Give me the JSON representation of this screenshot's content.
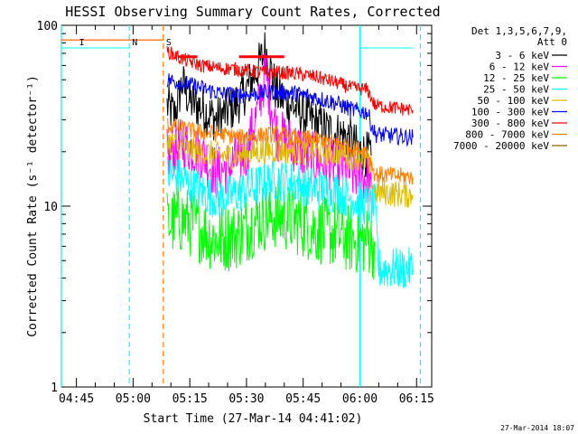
{
  "chart_data": {
    "type": "line",
    "title": "HESSI Observing Summary Count Rates, Corrected",
    "xlabel": "Start Time (27-Mar-14 04:41:02)",
    "ylabel": "Corrected Count Rate (s⁻¹ detector⁻¹)",
    "yscale": "log",
    "ylim": [
      1,
      100
    ],
    "xlim": [
      "04:41:02",
      "06:19:00"
    ],
    "x_ticks": [
      "04:45",
      "05:00",
      "05:15",
      "05:30",
      "05:45",
      "06:00",
      "06:15"
    ],
    "y_ticks": [
      "1",
      "10",
      "100"
    ],
    "grid": false,
    "legend_position": "right",
    "legend_header": [
      "Det 1,3,5,6,7,9,",
      "Att 0"
    ],
    "timestamp": "27-Mar-2014 18:07",
    "series": [
      {
        "name": "3 - 6 keV",
        "color": "#000000",
        "points": [
          [
            "05:09",
            36
          ],
          [
            "05:11",
            32
          ],
          [
            "05:13",
            48
          ],
          [
            "05:15",
            38
          ],
          [
            "05:18",
            35
          ],
          [
            "05:22",
            30
          ],
          [
            "05:27",
            36
          ],
          [
            "05:30",
            44
          ],
          [
            "05:33",
            58
          ],
          [
            "05:35",
            74
          ],
          [
            "05:38",
            42
          ],
          [
            "05:42",
            36
          ],
          [
            "05:47",
            30
          ],
          [
            "05:52",
            26
          ],
          [
            "05:57",
            24
          ],
          [
            "06:00",
            20
          ],
          [
            "06:03",
            19
          ]
        ]
      },
      {
        "name": "6 - 12 keV",
        "color": "#ff00ff",
        "points": [
          [
            "05:09",
            19
          ],
          [
            "05:13",
            22
          ],
          [
            "05:18",
            20
          ],
          [
            "05:22",
            15
          ],
          [
            "05:26",
            17
          ],
          [
            "05:30",
            20
          ],
          [
            "05:33",
            34
          ],
          [
            "05:35",
            55
          ],
          [
            "05:38",
            25
          ],
          [
            "05:42",
            22
          ],
          [
            "05:48",
            18
          ],
          [
            "05:54",
            17
          ],
          [
            "05:58",
            15
          ],
          [
            "06:00",
            15
          ],
          [
            "06:03",
            14
          ]
        ]
      },
      {
        "name": "12 - 25 keV",
        "color": "#00ff00",
        "points": [
          [
            "05:09",
            8
          ],
          [
            "05:13",
            8.5
          ],
          [
            "05:18",
            7.5
          ],
          [
            "05:22",
            6.5
          ],
          [
            "05:28",
            7
          ],
          [
            "05:33",
            8.5
          ],
          [
            "05:38",
            9
          ],
          [
            "05:42",
            8.5
          ],
          [
            "05:48",
            7.5
          ],
          [
            "05:54",
            7
          ],
          [
            "05:58",
            6.5
          ],
          [
            "06:02",
            6.5
          ],
          [
            "06:04",
            6
          ]
        ]
      },
      {
        "name": "25 - 50 keV",
        "color": "#00ffff",
        "points": [
          [
            "04:41",
            75
          ],
          [
            "04:58",
            75
          ],
          [
            "04:59",
            75
          ]
        ],
        "points_2": [
          [
            "05:09",
            15
          ],
          [
            "05:13",
            14
          ],
          [
            "05:18",
            12
          ],
          [
            "05:23",
            11
          ],
          [
            "05:28",
            12
          ],
          [
            "05:33",
            13
          ],
          [
            "05:38",
            14
          ],
          [
            "05:43",
            13.5
          ],
          [
            "05:48",
            12.5
          ],
          [
            "05:54",
            12
          ],
          [
            "05:58",
            11
          ],
          [
            "06:02",
            10
          ],
          [
            "06:04",
            10
          ],
          [
            "06:05",
            4.5
          ],
          [
            "06:14",
            4.5
          ]
        ],
        "points_3": [
          [
            "06:00",
            75
          ],
          [
            "06:14",
            75
          ]
        ]
      },
      {
        "name": "50 - 100 keV",
        "color": "#ddbb00",
        "points": [
          [
            "05:09",
            23
          ],
          [
            "05:13",
            21
          ],
          [
            "05:18",
            20
          ],
          [
            "05:23",
            19
          ],
          [
            "05:28",
            19
          ],
          [
            "05:33",
            20
          ],
          [
            "05:38",
            20.5
          ],
          [
            "05:43",
            20
          ],
          [
            "05:48",
            20
          ],
          [
            "05:54",
            19.5
          ],
          [
            "05:58",
            19
          ],
          [
            "06:02",
            18
          ],
          [
            "06:04",
            12
          ],
          [
            "06:14",
            11.5
          ]
        ]
      },
      {
        "name": "100 - 300 keV",
        "color": "#0000ff",
        "points": [
          [
            "05:09",
            50
          ],
          [
            "05:13",
            48
          ],
          [
            "05:18",
            45
          ],
          [
            "05:23",
            42
          ],
          [
            "05:28",
            41
          ],
          [
            "05:33",
            42
          ],
          [
            "05:38",
            43
          ],
          [
            "05:43",
            42
          ],
          [
            "05:48",
            40
          ],
          [
            "05:54",
            37
          ],
          [
            "05:58",
            34
          ],
          [
            "06:02",
            33
          ],
          [
            "06:04",
            25
          ],
          [
            "06:14",
            24
          ]
        ]
      },
      {
        "name": "300 - 800 keV",
        "color": "#ff0000",
        "points": [
          [
            "04:41",
            83
          ],
          [
            "05:08",
            83
          ]
        ],
        "points_2": [
          [
            "05:09",
            72
          ],
          [
            "05:13",
            65
          ],
          [
            "05:18",
            60
          ],
          [
            "05:23",
            58
          ],
          [
            "05:28",
            57
          ],
          [
            "05:33",
            55
          ],
          [
            "05:38",
            55
          ],
          [
            "05:43",
            54
          ],
          [
            "05:48",
            52
          ],
          [
            "05:54",
            48
          ],
          [
            "05:58",
            45
          ],
          [
            "06:02",
            44
          ],
          [
            "06:04",
            36
          ],
          [
            "06:14",
            34
          ]
        ]
      },
      {
        "name": "800 - 7000 keV",
        "color": "#ff8000",
        "points": [
          [
            "04:41",
            83
          ],
          [
            "05:08",
            83
          ]
        ],
        "points_2": [
          [
            "05:09",
            28
          ],
          [
            "05:13",
            27
          ],
          [
            "05:18",
            25.5
          ],
          [
            "05:23",
            25
          ],
          [
            "05:28",
            24
          ],
          [
            "05:33",
            24.5
          ],
          [
            "05:38",
            25
          ],
          [
            "05:43",
            24
          ],
          [
            "05:48",
            23.5
          ],
          [
            "05:54",
            22.5
          ],
          [
            "05:58",
            21
          ],
          [
            "06:02",
            20
          ],
          [
            "06:04",
            15
          ],
          [
            "06:14",
            14.5
          ]
        ]
      },
      {
        "name": "7000 - 20000 keV",
        "color": "#886600",
        "points": []
      }
    ],
    "red_markers": [
      {
        "start": "05:12",
        "end": "05:17",
        "y": 67
      },
      {
        "start": "05:28",
        "end": "05:40",
        "y": 67
      }
    ],
    "vertical_lines": [
      {
        "t": "04:41",
        "color": "#00ffff",
        "style": "solid"
      },
      {
        "t": "04:59",
        "color": "#00ffff",
        "style": "dashed"
      },
      {
        "t": "05:08",
        "color": "#ff8000",
        "style": "dashed"
      },
      {
        "t": "06:00",
        "color": "#00ffff",
        "style": "solid"
      },
      {
        "t": "06:16",
        "color": "#00ffff",
        "style": "dashed"
      }
    ],
    "annotations": [
      {
        "text": "N",
        "t": "04:59",
        "color": "#00ffff"
      },
      {
        "text": "S",
        "t": "05:08",
        "color": "#ff8000"
      },
      {
        "text": "I",
        "t": "04:45",
        "color": "#ff8000"
      }
    ]
  }
}
